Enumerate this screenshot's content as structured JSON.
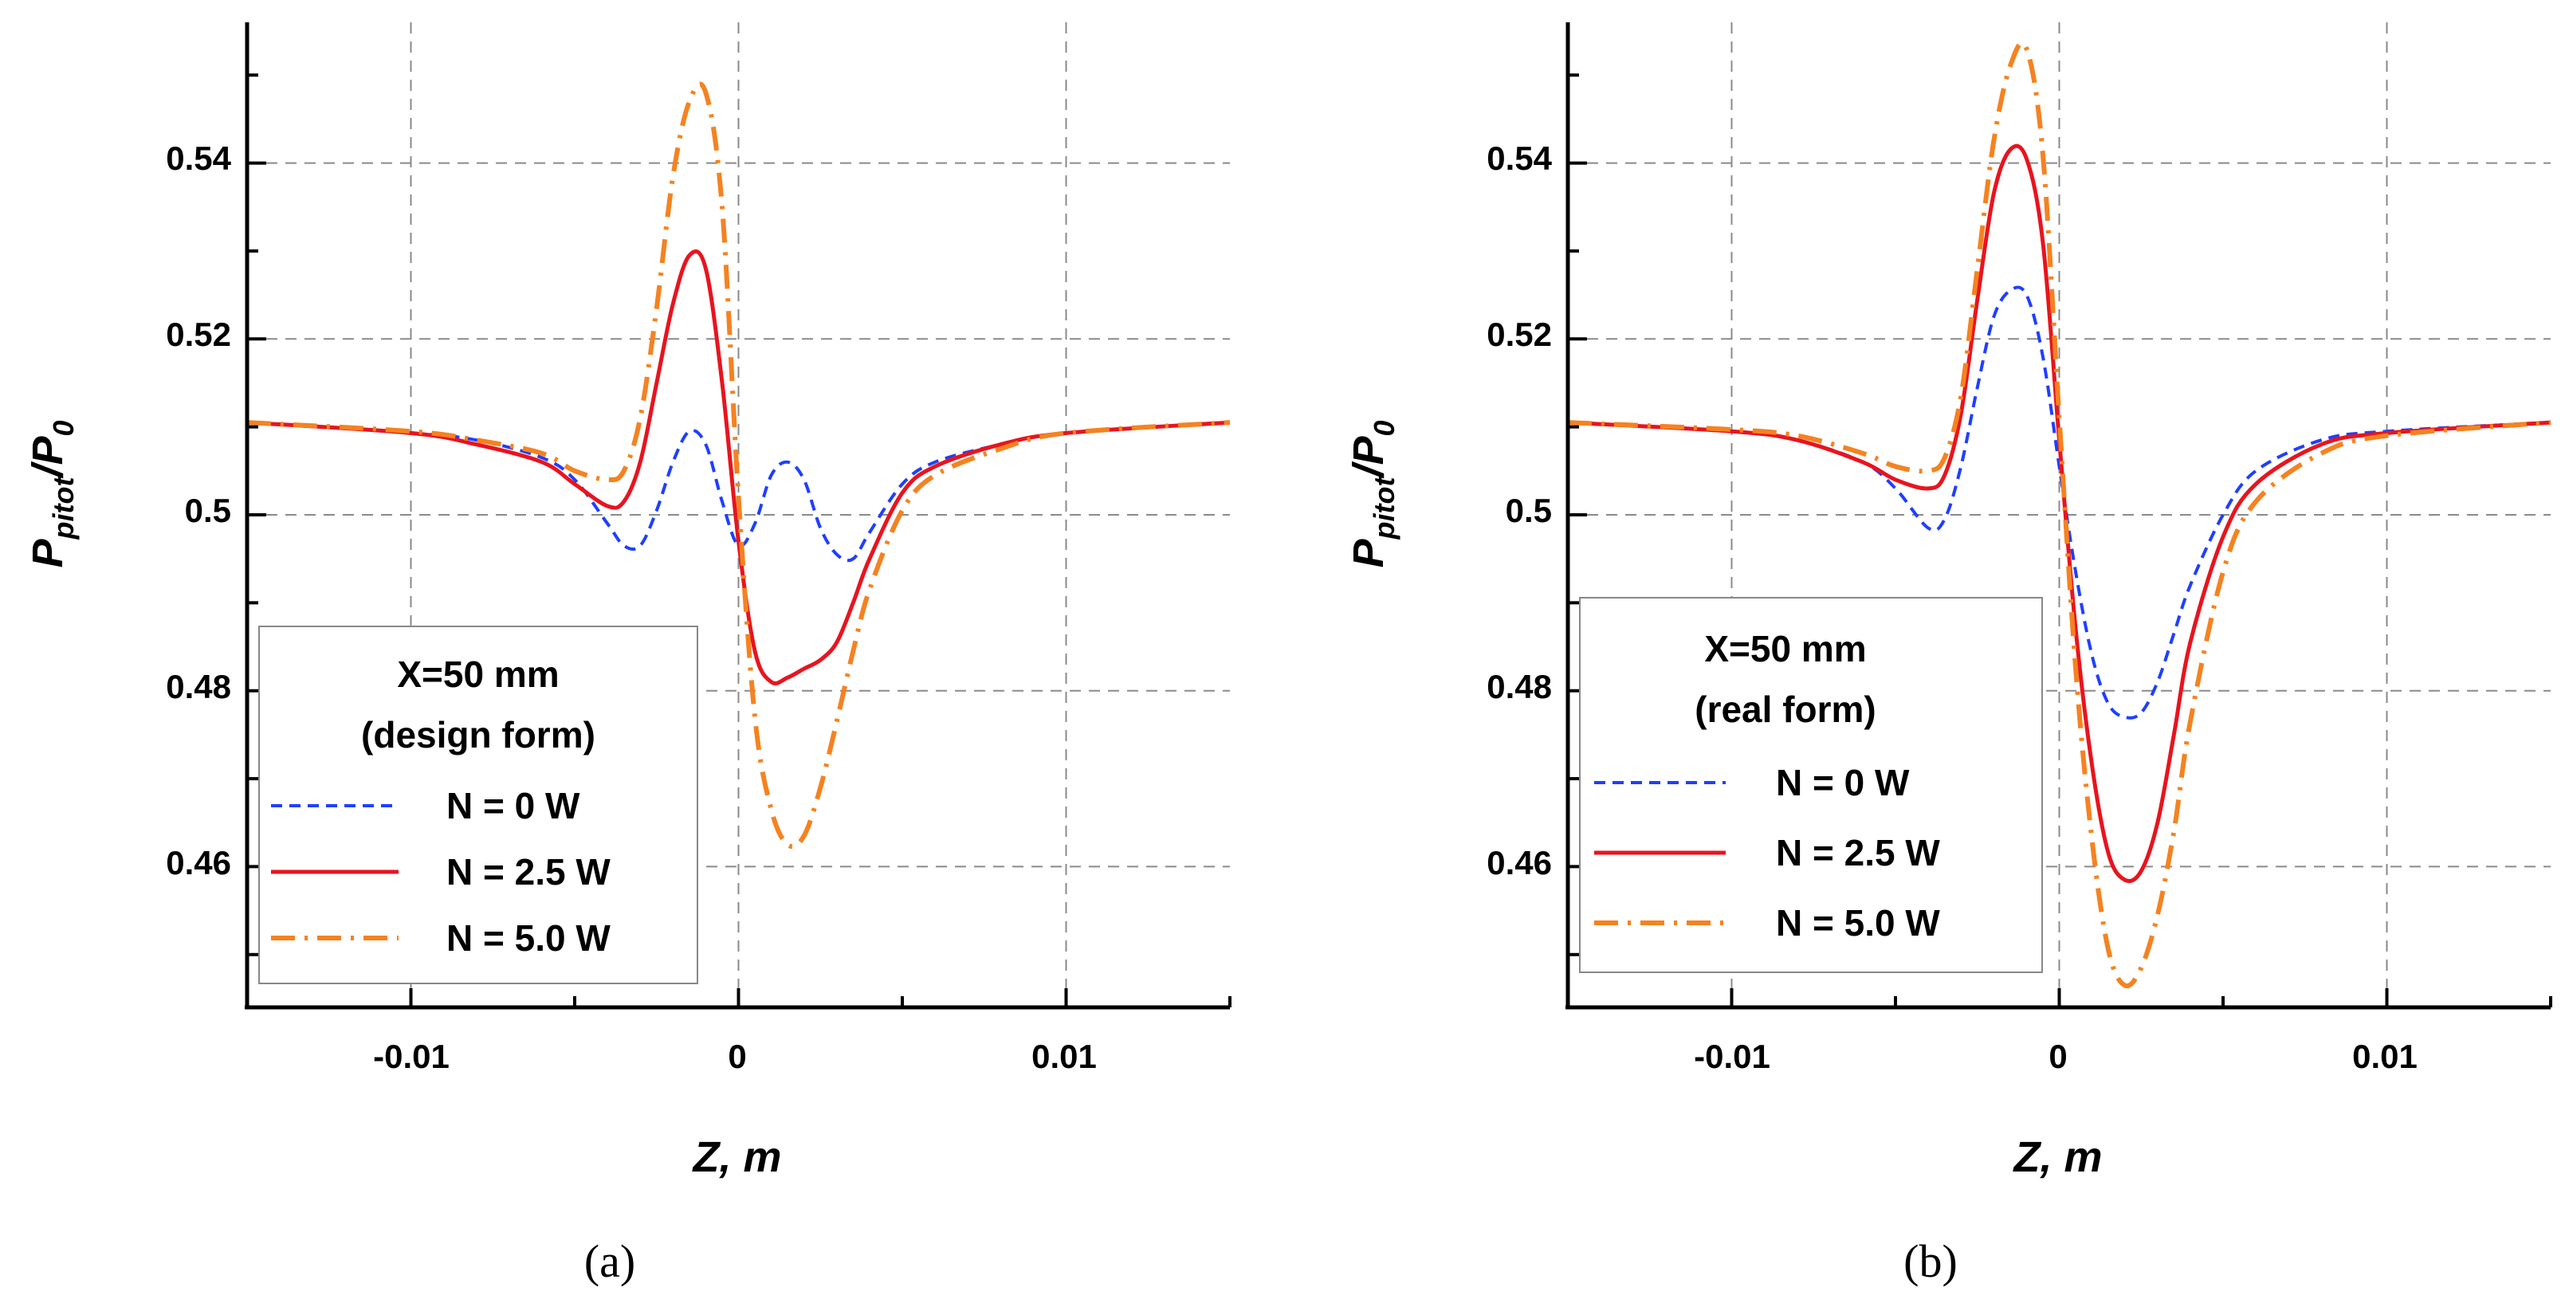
{
  "chart_data": [
    {
      "type": "line",
      "caption": "(a)",
      "legend_title": [
        "X=50 mm",
        "(design form)"
      ],
      "xlabel": "Z, m",
      "ylabel_main": "P",
      "ylabel_sub1": "pitot",
      "ylabel_slash": "/P",
      "ylabel_sub2": "0",
      "xlim": [
        -0.015,
        0.015
      ],
      "ylim": [
        0.444,
        0.556
      ],
      "xticks": [
        -0.01,
        0,
        0.01
      ],
      "xtick_labels": [
        "-0.01",
        "0",
        "0.01"
      ],
      "yticks": [
        0.46,
        0.48,
        0.5,
        0.52,
        0.54
      ],
      "ytick_labels": [
        "0.46",
        "0.48",
        "0.5",
        "0.52",
        "0.54"
      ],
      "grid": true,
      "legend_position": "bottom-left",
      "series": [
        {
          "name": "N = 0 W",
          "color": "#1f3fff",
          "style": "dash",
          "x": [
            -0.015,
            -0.01,
            -0.008,
            -0.006,
            -0.005,
            -0.004,
            -0.0035,
            -0.003,
            -0.0025,
            -0.002,
            -0.0015,
            -0.001,
            -0.0005,
            0,
            0.0005,
            0.001,
            0.0015,
            0.002,
            0.0025,
            0.003,
            0.0035,
            0.004,
            0.005,
            0.006,
            0.008,
            0.01,
            0.015
          ],
          "y": [
            0.5105,
            0.5093,
            0.5085,
            0.5065,
            0.504,
            0.499,
            0.4965,
            0.4965,
            0.5005,
            0.506,
            0.5095,
            0.508,
            0.5015,
            0.4965,
            0.499,
            0.5045,
            0.506,
            0.504,
            0.4985,
            0.4955,
            0.495,
            0.498,
            0.5035,
            0.506,
            0.508,
            0.5093,
            0.5105
          ]
        },
        {
          "name": "N = 2.5 W",
          "color": "#e8141e",
          "style": "solid",
          "x": [
            -0.015,
            -0.01,
            -0.008,
            -0.006,
            -0.005,
            -0.004,
            -0.0035,
            -0.003,
            -0.0025,
            -0.002,
            -0.0015,
            -0.001,
            -0.0005,
            0,
            0.0005,
            0.001,
            0.0015,
            0.002,
            0.0025,
            0.003,
            0.0035,
            0.004,
            0.005,
            0.006,
            0.008,
            0.01,
            0.015
          ],
          "y": [
            0.5105,
            0.5093,
            0.508,
            0.506,
            0.5035,
            0.501,
            0.5015,
            0.506,
            0.515,
            0.524,
            0.5295,
            0.528,
            0.515,
            0.497,
            0.4845,
            0.481,
            0.4815,
            0.4825,
            0.4835,
            0.4855,
            0.49,
            0.495,
            0.5025,
            0.5055,
            0.508,
            0.5093,
            0.5105
          ]
        },
        {
          "name": "N = 5.0 W",
          "color": "#f58220",
          "style": "dashdot",
          "x": [
            -0.015,
            -0.01,
            -0.008,
            -0.006,
            -0.005,
            -0.004,
            -0.0035,
            -0.003,
            -0.0025,
            -0.002,
            -0.0015,
            -0.001,
            -0.0005,
            0,
            0.0005,
            0.001,
            0.0015,
            0.002,
            0.0025,
            0.003,
            0.0035,
            0.004,
            0.005,
            0.006,
            0.008,
            0.01,
            0.015
          ],
          "y": [
            0.5105,
            0.5095,
            0.5085,
            0.507,
            0.505,
            0.504,
            0.505,
            0.511,
            0.5235,
            0.5385,
            0.547,
            0.548,
            0.535,
            0.502,
            0.477,
            0.4665,
            0.4625,
            0.4635,
            0.469,
            0.4765,
            0.4845,
            0.4915,
            0.5005,
            0.5045,
            0.5075,
            0.5093,
            0.5105
          ]
        }
      ]
    },
    {
      "type": "line",
      "caption": "(b)",
      "legend_title": [
        "X=50 mm",
        "(real form)"
      ],
      "xlabel": "Z, m",
      "ylabel_main": "P",
      "ylabel_sub1": "pitot",
      "ylabel_slash": "/P",
      "ylabel_sub2": "0",
      "xlim": [
        -0.015,
        0.015
      ],
      "ylim": [
        0.444,
        0.556
      ],
      "xticks": [
        -0.01,
        0,
        0.01
      ],
      "xtick_labels": [
        "-0.01",
        "0",
        "0.01"
      ],
      "yticks": [
        0.46,
        0.48,
        0.5,
        0.52,
        0.54
      ],
      "ytick_labels": [
        "0.46",
        "0.48",
        "0.5",
        "0.52",
        "0.54"
      ],
      "grid": true,
      "legend_position": "bottom-left",
      "series": [
        {
          "name": "N = 0 W",
          "color": "#1f3fff",
          "style": "dash",
          "x": [
            -0.015,
            -0.01,
            -0.008,
            -0.006,
            -0.005,
            -0.004,
            -0.0035,
            -0.003,
            -0.0025,
            -0.002,
            -0.0015,
            -0.001,
            -0.0005,
            0,
            0.0005,
            0.001,
            0.0015,
            0.002,
            0.0025,
            0.003,
            0.0035,
            0.004,
            0.005,
            0.006,
            0.008,
            0.01,
            0.015
          ],
          "y": [
            0.5105,
            0.5095,
            0.5085,
            0.506,
            0.503,
            0.4985,
            0.4995,
            0.5055,
            0.5145,
            0.5225,
            0.5255,
            0.525,
            0.518,
            0.5055,
            0.4935,
            0.484,
            0.4785,
            0.477,
            0.4775,
            0.481,
            0.4865,
            0.492,
            0.5,
            0.505,
            0.5085,
            0.5095,
            0.5105
          ]
        },
        {
          "name": "N = 2.5 W",
          "color": "#e8141e",
          "style": "solid",
          "x": [
            -0.015,
            -0.01,
            -0.008,
            -0.006,
            -0.005,
            -0.004,
            -0.0035,
            -0.003,
            -0.0025,
            -0.002,
            -0.0015,
            -0.001,
            -0.0005,
            0,
            0.0005,
            0.001,
            0.0015,
            0.002,
            0.0025,
            0.003,
            0.0035,
            0.004,
            0.005,
            0.006,
            0.008,
            0.01,
            0.015
          ],
          "y": [
            0.5105,
            0.5095,
            0.5085,
            0.506,
            0.504,
            0.503,
            0.5045,
            0.5115,
            0.5245,
            0.5365,
            0.5415,
            0.5405,
            0.531,
            0.5085,
            0.487,
            0.4715,
            0.4615,
            0.4585,
            0.4595,
            0.465,
            0.475,
            0.4855,
            0.4975,
            0.5035,
            0.508,
            0.5093,
            0.5105
          ]
        },
        {
          "name": "N = 5.0 W",
          "color": "#f58220",
          "style": "dashdot",
          "x": [
            -0.015,
            -0.01,
            -0.008,
            -0.006,
            -0.005,
            -0.004,
            -0.0035,
            -0.003,
            -0.0025,
            -0.002,
            -0.0015,
            -0.001,
            -0.0005,
            0,
            0.0005,
            0.001,
            0.0015,
            0.002,
            0.0025,
            0.003,
            0.0035,
            0.004,
            0.005,
            0.006,
            0.008,
            0.01,
            0.015
          ],
          "y": [
            0.5105,
            0.5097,
            0.509,
            0.507,
            0.5055,
            0.505,
            0.5065,
            0.5135,
            0.528,
            0.5425,
            0.551,
            0.553,
            0.541,
            0.511,
            0.4825,
            0.463,
            0.4505,
            0.4465,
            0.4485,
            0.4545,
            0.464,
            0.4765,
            0.4935,
            0.5015,
            0.507,
            0.509,
            0.5105
          ]
        }
      ]
    }
  ]
}
